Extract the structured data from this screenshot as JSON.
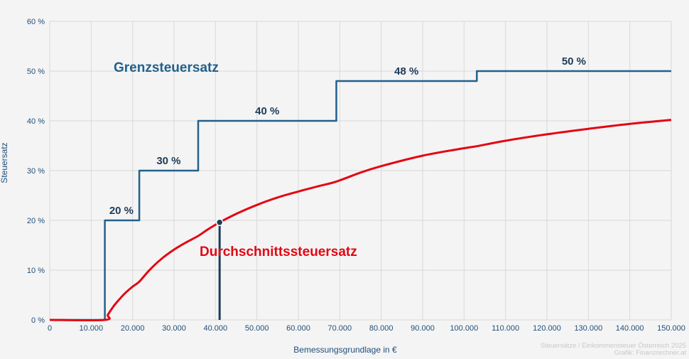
{
  "chart_data": {
    "type": "line",
    "xlabel": "Bemessungsgrundlage in €",
    "ylabel": "Steuersatz",
    "xlim": [
      0,
      150000
    ],
    "ylim": [
      0,
      60
    ],
    "x_ticks": [
      0,
      10000,
      20000,
      30000,
      40000,
      50000,
      60000,
      70000,
      80000,
      90000,
      100000,
      110000,
      120000,
      130000,
      140000,
      150000
    ],
    "x_tick_labels": [
      "0",
      "10.000",
      "20.000",
      "30.000",
      "40.000",
      "50.000",
      "60.000",
      "70.000",
      "80.000",
      "90.000",
      "100.000",
      "110.000",
      "120.000",
      "130.000",
      "140.000",
      "150.000"
    ],
    "y_ticks": [
      0,
      10,
      20,
      30,
      40,
      50,
      60
    ],
    "y_tick_labels": [
      "0 %",
      "10 %",
      "20 %",
      "30 %",
      "40 %",
      "50 %",
      "60 %"
    ],
    "grid": true,
    "series": [
      {
        "name": "Grenzsteuersatz",
        "color": "#22608c",
        "step": true,
        "x": [
          0,
          13308,
          13308,
          21617,
          21617,
          35836,
          35836,
          69166,
          69166,
          103072,
          103072,
          150000
        ],
        "y": [
          0,
          0,
          20,
          20,
          30,
          30,
          40,
          40,
          48,
          48,
          50,
          50
        ],
        "step_labels": [
          {
            "x": 17300,
            "y": 20,
            "text": "20 %"
          },
          {
            "x": 28700,
            "y": 30,
            "text": "30 %"
          },
          {
            "x": 52500,
            "y": 40,
            "text": "40 %"
          },
          {
            "x": 86100,
            "y": 48,
            "text": "48 %"
          },
          {
            "x": 126500,
            "y": 50,
            "text": "50 %"
          }
        ]
      },
      {
        "name": "Durchschnittssteuersatz",
        "color": "#e30613",
        "step": false,
        "x": [
          0,
          13308,
          14000,
          15000,
          16000,
          18000,
          20000,
          21617,
          24000,
          27000,
          30000,
          33000,
          35836,
          38000,
          41000,
          45000,
          50000,
          55000,
          60000,
          65000,
          69166,
          75000,
          80000,
          90000,
          100000,
          103072,
          110000,
          120000,
          130000,
          140000,
          150000
        ],
        "y": [
          0,
          0,
          0.99,
          2.26,
          3.36,
          5.21,
          6.69,
          7.69,
          9.95,
          12.29,
          14.13,
          15.62,
          16.87,
          18.1,
          19.6,
          21.3,
          23.1,
          24.6,
          25.8,
          26.9,
          27.8,
          29.6,
          30.9,
          33.0,
          34.5,
          34.9,
          36.0,
          37.3,
          38.4,
          39.4,
          40.2
        ]
      }
    ],
    "marker": {
      "x": 41000,
      "y": 19.6
    },
    "credits": [
      "Steuersätze / Einkommensteuer Österreich 2025",
      "Grafik: Finanzrechner.at"
    ]
  }
}
